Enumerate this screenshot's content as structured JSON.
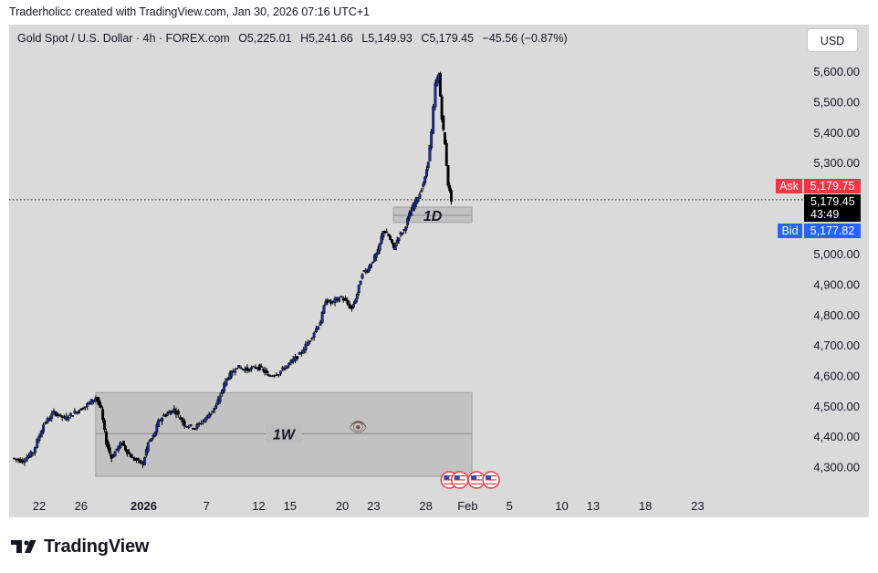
{
  "header": {
    "caption": "Traderholicc created with TradingView.com, Jan 30, 2026 07:16 UTC+1",
    "symbol": "Gold Spot / U.S. Dollar · 4h · FOREX.com",
    "open": "O5,225.01",
    "high": "H5,241.66",
    "low": "L5,149.93",
    "close": "C5,179.45",
    "change": "−45.56 (−0.87%)",
    "currency": "USD"
  },
  "price_tags": {
    "ask_label": "Ask",
    "ask_value": "5,179.75",
    "last_value": "5,179.45",
    "countdown": "43:49",
    "bid_label": "Bid",
    "bid_value": "5,177.82",
    "ask_color": "#f23645",
    "bid_color": "#2962ff",
    "last_color": "#000000"
  },
  "zones": [
    {
      "label": "1W",
      "x_start": "Dec 27",
      "x_end": "Feb 2",
      "y_low": 4270,
      "y_high": 4545,
      "mid": 4410
    },
    {
      "label": "1D",
      "x_start": "Jan 24",
      "x_end": "Feb 2",
      "y_low": 5105,
      "y_high": 5155,
      "mid": 5128
    }
  ],
  "footer": {
    "brand": "TradingView"
  },
  "chart_data": {
    "type": "line",
    "title": "",
    "xlabel": "",
    "ylabel": "",
    "ylim": [
      4240,
      5680
    ],
    "y_ticks": [
      "5,600.00",
      "5,500.00",
      "5,400.00",
      "5,300.00",
      "5,000.00",
      "4,900.00",
      "4,800.00",
      "4,700.00",
      "4,600.00",
      "4,500.00",
      "4,400.00",
      "4,300.00"
    ],
    "y_tick_values": [
      5600,
      5500,
      5400,
      5300,
      5000,
      4900,
      4800,
      4700,
      4600,
      4500,
      4400,
      4300
    ],
    "x_ticks": [
      "22",
      "26",
      "2026",
      "7",
      "12",
      "15",
      "20",
      "23",
      "28",
      "Feb",
      "5",
      "10",
      "13",
      "18",
      "23"
    ],
    "x_tick_days": [
      22,
      26,
      32,
      38,
      43,
      46,
      51,
      54,
      59,
      63,
      67,
      72,
      75,
      80,
      85
    ],
    "series": [
      {
        "x_days": [
          19.5,
          20.5,
          21.5,
          22.5,
          23.5,
          24.5,
          25.5,
          26.5,
          27.5,
          28,
          28.5,
          29,
          29.5,
          30,
          30.5,
          31,
          32,
          32.5,
          33,
          33.5,
          34,
          34.5,
          35,
          36,
          37,
          38,
          38.5,
          39,
          40,
          40.5,
          41,
          42,
          43,
          43.5,
          44,
          45,
          46,
          47,
          48,
          49,
          49.5,
          50,
          51,
          52,
          52.5,
          53,
          53.5,
          54,
          54.5,
          55,
          55.5,
          56,
          56.5,
          57,
          57.5,
          58,
          58.5,
          59,
          59.3,
          59.6,
          60,
          60.3,
          60.6,
          60.9,
          61.2,
          61.5
        ],
        "values": [
          4330,
          4320,
          4350,
          4440,
          4480,
          4460,
          4480,
          4500,
          4530,
          4490,
          4380,
          4330,
          4360,
          4380,
          4350,
          4330,
          4310,
          4380,
          4400,
          4450,
          4470,
          4480,
          4490,
          4440,
          4430,
          4460,
          4480,
          4500,
          4590,
          4610,
          4630,
          4620,
          4630,
          4620,
          4600,
          4610,
          4640,
          4670,
          4720,
          4780,
          4850,
          4840,
          4860,
          4820,
          4870,
          4940,
          4950,
          4980,
          5010,
          5080,
          5060,
          5020,
          5060,
          5080,
          5130,
          5170,
          5200,
          5250,
          5310,
          5400,
          5560,
          5590,
          5450,
          5360,
          5230,
          5179.45
        ]
      }
    ],
    "grid": false,
    "last_price": 5179.45
  }
}
